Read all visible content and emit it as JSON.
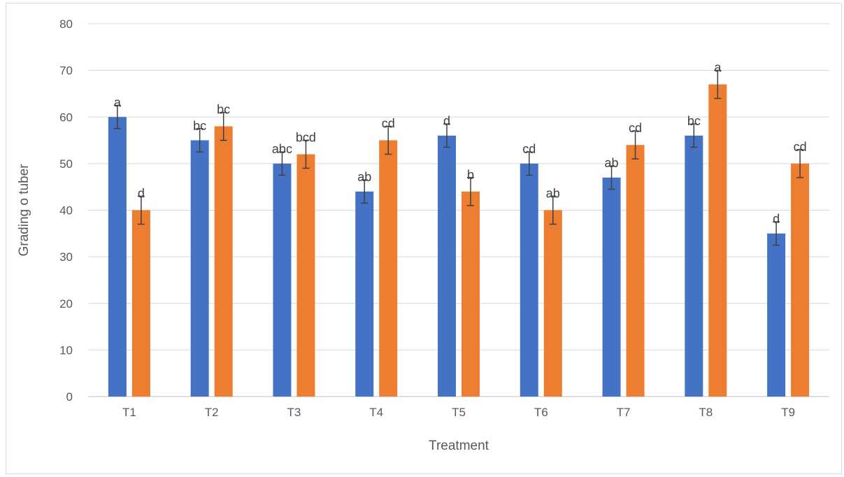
{
  "chart_data": {
    "type": "bar",
    "title": "",
    "xlabel": "Treatment",
    "ylabel": "Grading o tuber",
    "ylim": [
      0,
      80
    ],
    "yticks": [
      0,
      10,
      20,
      30,
      40,
      50,
      60,
      70,
      80
    ],
    "grid": true,
    "legend": "none",
    "categories": [
      "T1",
      "T2",
      "T3",
      "T4",
      "T5",
      "T6",
      "T7",
      "T8",
      "T9"
    ],
    "series": [
      {
        "color": "#4472C4",
        "values": [
          60,
          55,
          50,
          44,
          56,
          50,
          47,
          56,
          35
        ],
        "errors": [
          2.5,
          2.5,
          2.5,
          2.5,
          2.5,
          2.5,
          2.5,
          2.5,
          2.5
        ],
        "labels": [
          "a",
          "bc",
          "abc",
          "ab",
          "d",
          "cd",
          "ab",
          "bc",
          "d"
        ]
      },
      {
        "color": "#ED7D31",
        "values": [
          40,
          58,
          52,
          55,
          44,
          40,
          54,
          67,
          50
        ],
        "errors": [
          3,
          3,
          3,
          3,
          3,
          3,
          3,
          3,
          3
        ],
        "labels": [
          "d",
          "bc",
          "bcd",
          "cd",
          "b",
          "ab",
          "cd",
          "a",
          "cd"
        ]
      }
    ]
  }
}
